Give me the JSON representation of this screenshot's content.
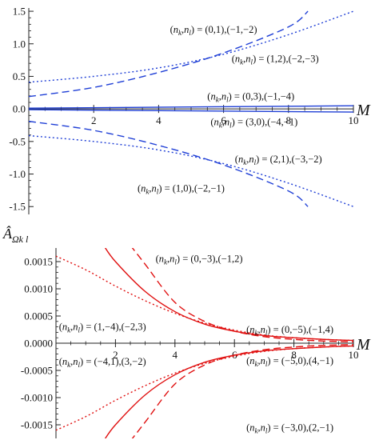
{
  "chart_data": [
    {
      "type": "line",
      "xlabel": "M",
      "ylabel": "",
      "xlim": [
        0,
        10
      ],
      "ylim": [
        -1.62,
        1.55
      ],
      "x_ticks": [
        2,
        4,
        6,
        8,
        10
      ],
      "y_ticks": [
        -1.5,
        -1.0,
        -0.5,
        0.0,
        0.5,
        1.0,
        1.5
      ],
      "y_tick_labels": [
        "-1.5",
        "-1.0",
        "-0.5",
        "0.0",
        "0.5",
        "1.0",
        "1.5"
      ],
      "color": "#1f3fd6",
      "series": [
        {
          "style": "dashed",
          "x": [
            0,
            2,
            4,
            6,
            8,
            8.6
          ],
          "y": [
            0.19,
            0.33,
            0.56,
            0.86,
            1.26,
            1.5
          ]
        },
        {
          "style": "dotted",
          "x": [
            0,
            2,
            4,
            6,
            8,
            10
          ],
          "y": [
            0.41,
            0.5,
            0.63,
            0.84,
            1.14,
            1.5
          ]
        },
        {
          "style": "solid",
          "x": [
            0,
            10
          ],
          "y": [
            0.012,
            0.048
          ]
        },
        {
          "style": "solid",
          "x": [
            0,
            10
          ],
          "y": [
            -0.012,
            -0.048
          ]
        },
        {
          "style": "dashed",
          "x": [
            0,
            2,
            4,
            6,
            8,
            8.6
          ],
          "y": [
            -0.19,
            -0.33,
            -0.56,
            -0.86,
            -1.26,
            -1.5
          ]
        },
        {
          "style": "dotted",
          "x": [
            0,
            2,
            4,
            6,
            8,
            10
          ],
          "y": [
            -0.41,
            -0.5,
            -0.63,
            -0.84,
            -1.14,
            -1.5
          ]
        }
      ],
      "annotations": [
        {
          "text": "(n_k,n_l) = (0,1),(−1,−2)",
          "x": 4.35,
          "y": 1.22
        },
        {
          "text": "(n_k,n_l) = (1,2),(−2,−3)",
          "x": 6.25,
          "y": 0.77
        },
        {
          "text": "(n_k,n_l) = (0,3),(−1,−4)",
          "x": 5.5,
          "y": 0.19
        },
        {
          "text": "(n_k,n_l) = (3,0),(−4,−1)",
          "x": 5.6,
          "y": -0.2
        },
        {
          "text": "(n_k,n_l) = (2,1),(−3,−2)",
          "x": 6.35,
          "y": -0.77
        },
        {
          "text": "(n_k,n_l) = (1,0),(−2,−1)",
          "x": 3.35,
          "y": -1.22
        }
      ]
    },
    {
      "type": "line",
      "xlabel": "M",
      "ylabel": "Â_{Ω_k l}",
      "xlim": [
        0,
        10
      ],
      "ylim": [
        -0.00175,
        0.00175
      ],
      "x_ticks": [
        2,
        4,
        6,
        8,
        10
      ],
      "y_ticks": [
        -0.0015,
        -0.001,
        -0.0005,
        0.0,
        0.0005,
        0.001,
        0.0015
      ],
      "y_tick_labels": [
        "-0.0015",
        "-0.0010",
        "-0.0005",
        "0.0000",
        "0.0005",
        "0.0010",
        "0.0015"
      ],
      "color": "#e01010",
      "series": [
        {
          "style": "solid",
          "x": [
            1.6,
            2,
            3,
            4,
            5,
            6,
            7,
            8,
            9,
            10
          ],
          "y": [
            0.0018,
            0.0015,
            0.00095,
            0.00058,
            0.00035,
            0.00022,
            0.00014,
            0.0001,
            7e-05,
            5e-05
          ]
        },
        {
          "style": "dashed",
          "x": [
            2.5,
            3,
            4,
            5,
            6,
            7,
            8,
            9,
            10
          ],
          "y": [
            0.0018,
            0.00145,
            0.00075,
            0.0004,
            0.00022,
            0.00012,
            7e-05,
            4e-05,
            2.5e-05
          ]
        },
        {
          "style": "dotted",
          "x": [
            0,
            1,
            2,
            3,
            4,
            5,
            6,
            7,
            8,
            9,
            10
          ],
          "y": [
            0.0016,
            0.00135,
            0.00105,
            0.00078,
            0.00055,
            0.00037,
            0.00024,
            0.00015,
            0.0001,
            7e-05,
            5e-05
          ]
        },
        {
          "style": "solid",
          "x": [
            1.6,
            2,
            3,
            4,
            5,
            6,
            7,
            8,
            9,
            10
          ],
          "y": [
            -0.0018,
            -0.0015,
            -0.00095,
            -0.00058,
            -0.00035,
            -0.00022,
            -0.00014,
            -0.0001,
            -7e-05,
            -5e-05
          ]
        },
        {
          "style": "dashed",
          "x": [
            2.5,
            3,
            4,
            5,
            6,
            7,
            8,
            9,
            10
          ],
          "y": [
            -0.0018,
            -0.00145,
            -0.00075,
            -0.0004,
            -0.00022,
            -0.00012,
            -7e-05,
            -4e-05,
            -2.5e-05
          ]
        },
        {
          "style": "dotted",
          "x": [
            0,
            1,
            2,
            3,
            4,
            5,
            6,
            7,
            8,
            9,
            10
          ],
          "y": [
            -0.0016,
            -0.00135,
            -0.00105,
            -0.00078,
            -0.00055,
            -0.00037,
            -0.00024,
            -0.00015,
            -0.0001,
            -7e-05,
            -5e-05
          ]
        }
      ],
      "annotations": [
        {
          "text": "(n_k,n_l) = (0,−3),(−1,2)",
          "x": 3.35,
          "y": 0.00155
        },
        {
          "text": "(n_k,n_l) = (1,−4),(−2,3)",
          "x": 0.1,
          "y": 0.0003
        },
        {
          "text": "(n_k,n_l) = (0,−5),(−1,4)",
          "x": 6.4,
          "y": 0.00025
        },
        {
          "text": "(n_k,n_l) = (−4,1),(3,−2)",
          "x": 0.1,
          "y": -0.00034
        },
        {
          "text": "(n_k,n_l) = (−5,0),(4,−1)",
          "x": 6.4,
          "y": -0.00032
        },
        {
          "text": "(n_k,n_l) = (−3,0),(2,−1)",
          "x": 6.4,
          "y": -0.00155
        }
      ]
    }
  ]
}
